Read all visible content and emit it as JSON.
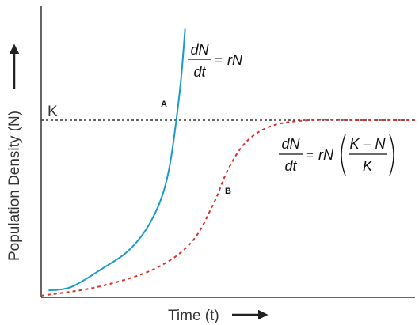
{
  "chart_data": {
    "type": "line",
    "xlabel": "Time (t)",
    "ylabel": "Population Density (N)",
    "carrying_capacity_label": "K",
    "colors": {
      "exponential": "#1a9bcb",
      "logistic": "#d9302a",
      "capacity_line": "#333333",
      "axes": "#333333"
    },
    "series": [
      {
        "label": "A",
        "style": "solid",
        "color": "#1a9bcb",
        "equation": {
          "numerator": "dN",
          "denominator": "dt",
          "rhs": "rN"
        },
        "x": [
          0.02,
          0.08,
          0.16,
          0.24,
          0.3,
          0.34,
          0.37,
          0.385
        ],
        "y": [
          0.03,
          0.05,
          0.15,
          0.27,
          0.45,
          0.7,
          1.15,
          1.52
        ]
      },
      {
        "label": "B",
        "style": "dashed",
        "color": "#d9302a",
        "equation": {
          "numerator": "dN",
          "denominator": "dt",
          "rhs_prefix": "rN",
          "frac_numerator": "K – N",
          "frac_denominator": "K"
        },
        "x": [
          0.0,
          0.15,
          0.3,
          0.4,
          0.46,
          0.5,
          0.55,
          0.62,
          0.72,
          0.85,
          1.0
        ],
        "y": [
          0.0,
          0.05,
          0.15,
          0.3,
          0.52,
          0.72,
          0.88,
          0.97,
          1.0,
          1.0,
          1.0
        ]
      }
    ],
    "capacity_y": 1.0,
    "grid": false,
    "legend": "none"
  }
}
